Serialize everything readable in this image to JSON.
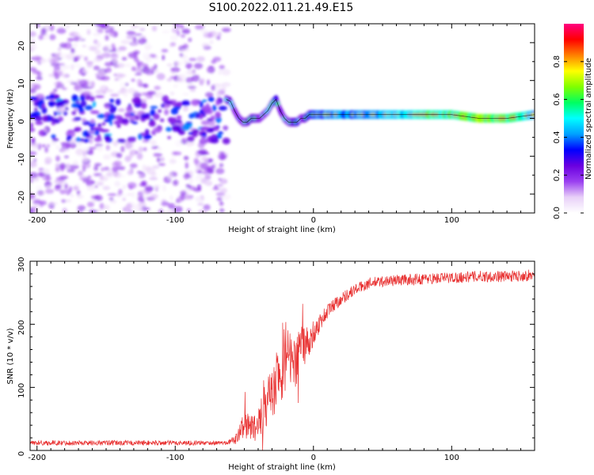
{
  "figure": {
    "title": "S100.2022.011.21.49.E15"
  },
  "chart_data": [
    {
      "type": "heatmap",
      "panel": "spectrogram",
      "xlabel": "Height of straight line (km)",
      "ylabel": "Frequency (Hz)",
      "xlim": [
        -205,
        160
      ],
      "ylim": [
        -25,
        25
      ],
      "xticks": [
        -200,
        -100,
        0,
        100
      ],
      "yticks": [
        -20,
        -10,
        0,
        10,
        20
      ],
      "colorbar": {
        "label": "Normalized spectral amplitude",
        "range": [
          0,
          1
        ],
        "ticks": [
          "0.0",
          "0.2",
          "0.4",
          "0.6",
          "0.8"
        ],
        "colors": [
          "#ffffff",
          "#e8d0f8",
          "#9a3ff0",
          "#6a00e0",
          "#0000ff",
          "#00a0ff",
          "#00ffff",
          "#00ff60",
          "#80ff00",
          "#ffff00",
          "#ff8000",
          "#ff0000",
          "#ff0080"
        ]
      },
      "noise_region": {
        "x": [
          -205,
          -63
        ],
        "freq_spread": 24,
        "amplitude": [
          0.02,
          0.25
        ]
      },
      "ridge": {
        "x": [
          -63,
          -60,
          -57,
          -54,
          -51,
          -48,
          -45,
          -42,
          -39,
          -36,
          -33,
          -30,
          -27,
          -24,
          -21,
          -18,
          -15,
          -12,
          -9,
          -6,
          -3,
          0,
          20,
          40,
          60,
          80,
          100,
          120,
          140,
          160
        ],
        "freq": [
          5,
          4.5,
          2,
          0,
          -1,
          -1,
          0,
          0,
          0,
          1,
          2,
          4,
          5,
          2,
          0,
          -1,
          -1,
          -1,
          0,
          0,
          1,
          1,
          1,
          1,
          1,
          1,
          1,
          0,
          0,
          1
        ],
        "amplitude": [
          0.3,
          0.35,
          0.3,
          0.25,
          0.3,
          0.35,
          0.35,
          0.35,
          0.35,
          0.3,
          0.35,
          0.4,
          0.45,
          0.35,
          0.3,
          0.3,
          0.35,
          0.4,
          0.35,
          0.4,
          0.45,
          0.5,
          0.55,
          0.55,
          0.6,
          0.65,
          0.7,
          0.8,
          0.75,
          0.6
        ]
      }
    },
    {
      "type": "line",
      "panel": "snr",
      "xlabel": "Height of straight line (km)",
      "ylabel": "SNR (10 * v/v)",
      "xlim": [
        -205,
        160
      ],
      "ylim": [
        0,
        300
      ],
      "xticks": [
        -200,
        -100,
        0,
        100
      ],
      "yticks": [
        0,
        100,
        200,
        300
      ],
      "color": "#e83030",
      "x": [
        -205,
        -150,
        -100,
        -65,
        -60,
        -55,
        -50,
        -45,
        -40,
        -35,
        -30,
        -25,
        -20,
        -15,
        -10,
        -5,
        0,
        5,
        10,
        15,
        20,
        25,
        30,
        35,
        40,
        50,
        60,
        80,
        100,
        120,
        140,
        160
      ],
      "y": [
        12,
        12,
        12,
        12,
        14,
        20,
        45,
        35,
        40,
        70,
        90,
        120,
        150,
        130,
        160,
        170,
        185,
        205,
        220,
        232,
        240,
        248,
        255,
        260,
        265,
        268,
        270,
        272,
        274,
        276,
        276,
        278
      ],
      "jitter": [
        8,
        8,
        8,
        6,
        8,
        20,
        45,
        40,
        50,
        70,
        80,
        100,
        110,
        90,
        80,
        60,
        40,
        30,
        25,
        22,
        20,
        20,
        18,
        18,
        18,
        18,
        18,
        18,
        18,
        18,
        18,
        18
      ]
    }
  ]
}
